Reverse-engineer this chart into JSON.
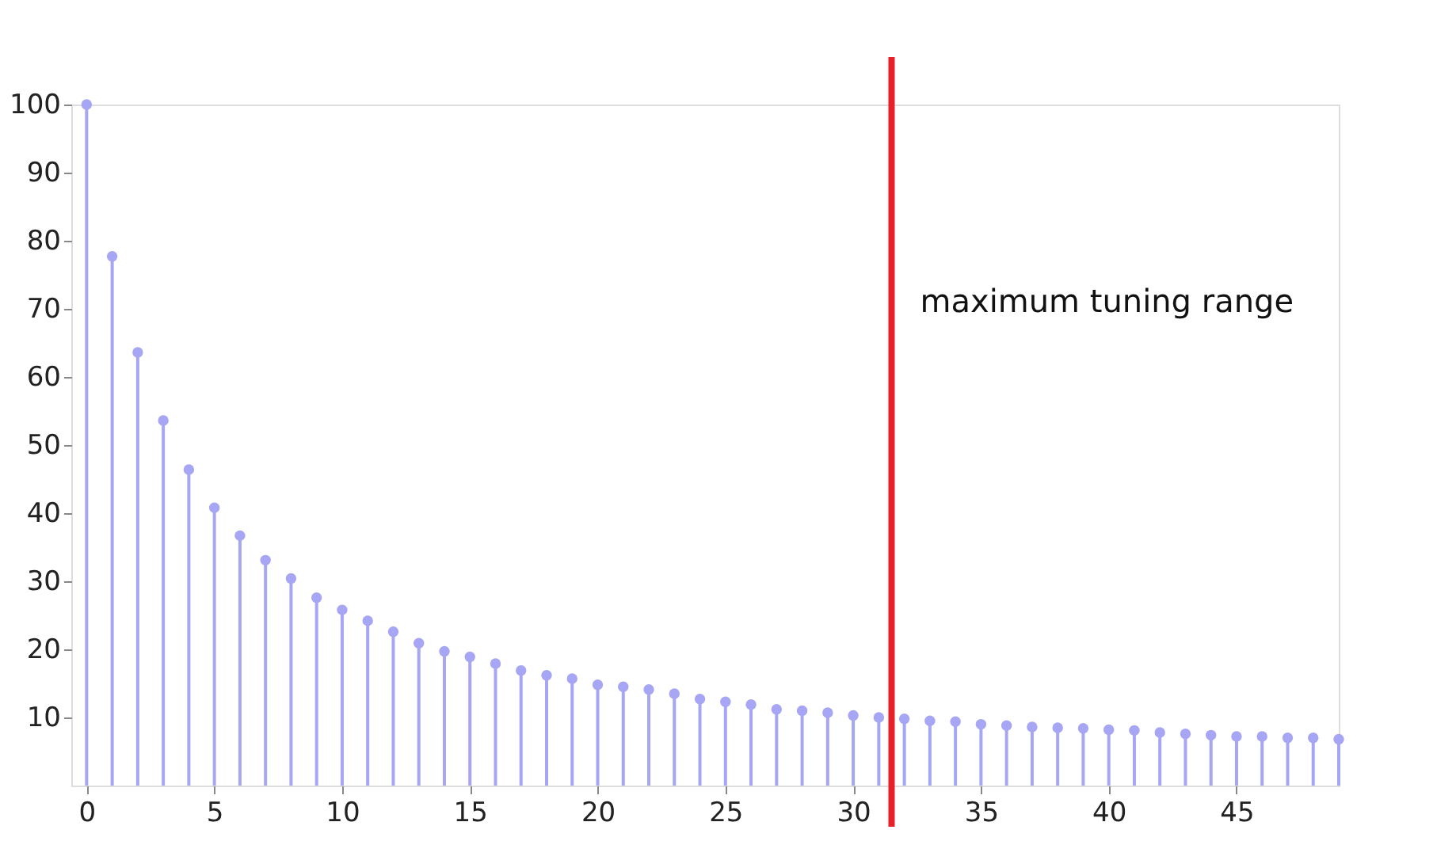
{
  "chart_data": {
    "type": "lollipop",
    "x": [
      0,
      1,
      2,
      3,
      4,
      5,
      6,
      7,
      8,
      9,
      10,
      11,
      12,
      13,
      14,
      15,
      16,
      17,
      18,
      19,
      20,
      21,
      22,
      23,
      24,
      25,
      26,
      27,
      28,
      29,
      30,
      31,
      32,
      33,
      34,
      35,
      36,
      37,
      38,
      39,
      40,
      41,
      42,
      43,
      44,
      45,
      46,
      47,
      48,
      49
    ],
    "values": [
      100,
      77.7,
      63.6,
      53.6,
      46.4,
      40.8,
      36.7,
      33.1,
      30.4,
      27.6,
      25.8,
      24.2,
      22.6,
      20.9,
      19.7,
      18.9,
      17.9,
      16.9,
      16.2,
      15.7,
      14.8,
      14.5,
      14.1,
      13.5,
      12.7,
      12.3,
      11.9,
      11.2,
      11.0,
      10.7,
      10.3,
      10.0,
      9.8,
      9.5,
      9.4,
      9.0,
      8.8,
      8.6,
      8.5,
      8.4,
      8.2,
      8.1,
      7.8,
      7.6,
      7.4,
      7.2,
      7.2,
      7.0,
      7.0,
      6.8
    ],
    "color": "#a6a6f5",
    "marker": "circle",
    "xlim": [
      -0.6,
      49
    ],
    "xticks": [
      0,
      5,
      10,
      15,
      20,
      25,
      30,
      35,
      40,
      45
    ],
    "ylim": [
      0,
      100
    ],
    "yticks": [
      10,
      20,
      30,
      40,
      50,
      60,
      70,
      80,
      90,
      100
    ],
    "grid": false,
    "ref_lines": [
      {
        "axis": "x",
        "value": 31.5,
        "label": "maximum tuning range",
        "color": "#e8202a"
      }
    ]
  }
}
